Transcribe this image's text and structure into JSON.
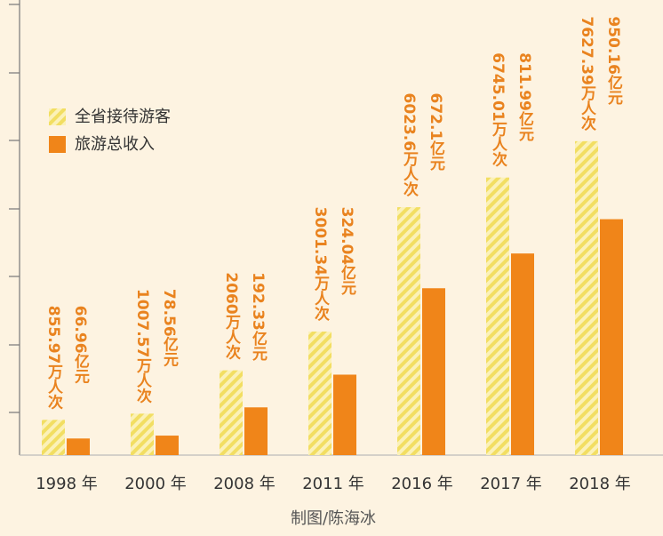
{
  "chart_data": {
    "type": "bar",
    "categories": [
      "1998 年",
      "2000 年",
      "2008 年",
      "2011 年",
      "2016 年",
      "2017 年",
      "2018 年"
    ],
    "series": [
      {
        "name": "全省接待游客",
        "color": "#f2de62",
        "pattern": "hatch",
        "values": [
          855.97,
          1007.57,
          2060,
          3001.34,
          6023.6,
          6745.01,
          7627.39
        ],
        "value_labels": [
          "855.97万人次",
          "1007.57万人次",
          "2060万人次",
          "3001.34万人次",
          "6023.6万人次",
          "6745.01万人次",
          "7627.39万人次"
        ]
      },
      {
        "name": "旅游总收入",
        "color": "#f08519",
        "axis": "y2",
        "values": [
          66.96,
          78.56,
          192.33,
          324.04,
          672.1,
          811.99,
          950.16
        ],
        "value_labels": [
          "66.96亿元",
          "78.56亿元",
          "192.33亿元",
          "324.04亿元",
          "672.1亿元",
          "811.99亿元",
          "950.16亿元"
        ]
      }
    ],
    "ylim": [
      0,
      10950
    ],
    "y2lim": [
      0,
      1815
    ],
    "credit": "制图/陈海冰"
  }
}
